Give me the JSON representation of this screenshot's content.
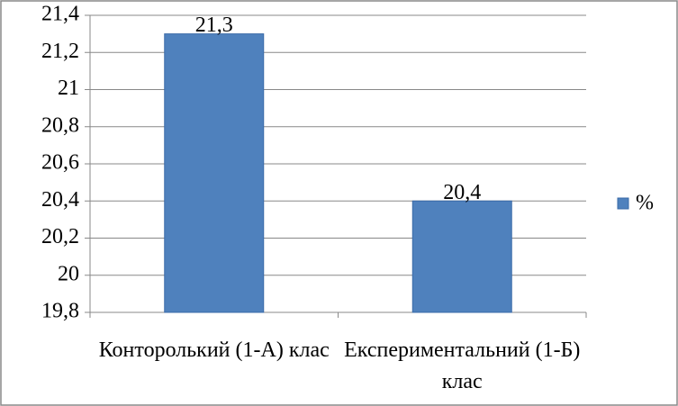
{
  "chart_data": {
    "type": "bar",
    "categories": [
      "Конторолький (1-А) клас",
      "Експериментальний (1-Б) клас"
    ],
    "series": [
      {
        "name": "%",
        "color": "#4f81bd",
        "values": [
          21.3,
          20.4
        ],
        "value_labels": [
          "21,3",
          "20,4"
        ]
      }
    ],
    "ylim": [
      19.8,
      21.4
    ],
    "yticks": [
      {
        "value": 19.8,
        "label": "19,8"
      },
      {
        "value": 20,
        "label": "20"
      },
      {
        "value": 20.2,
        "label": "20,2"
      },
      {
        "value": 20.4,
        "label": "20,4"
      },
      {
        "value": 20.6,
        "label": "20,6"
      },
      {
        "value": 20.8,
        "label": "20,8"
      },
      {
        "value": 21,
        "label": "21"
      },
      {
        "value": 21.2,
        "label": "21,2"
      },
      {
        "value": 21.4,
        "label": "21,4"
      }
    ],
    "grid": true,
    "legend": "right"
  }
}
